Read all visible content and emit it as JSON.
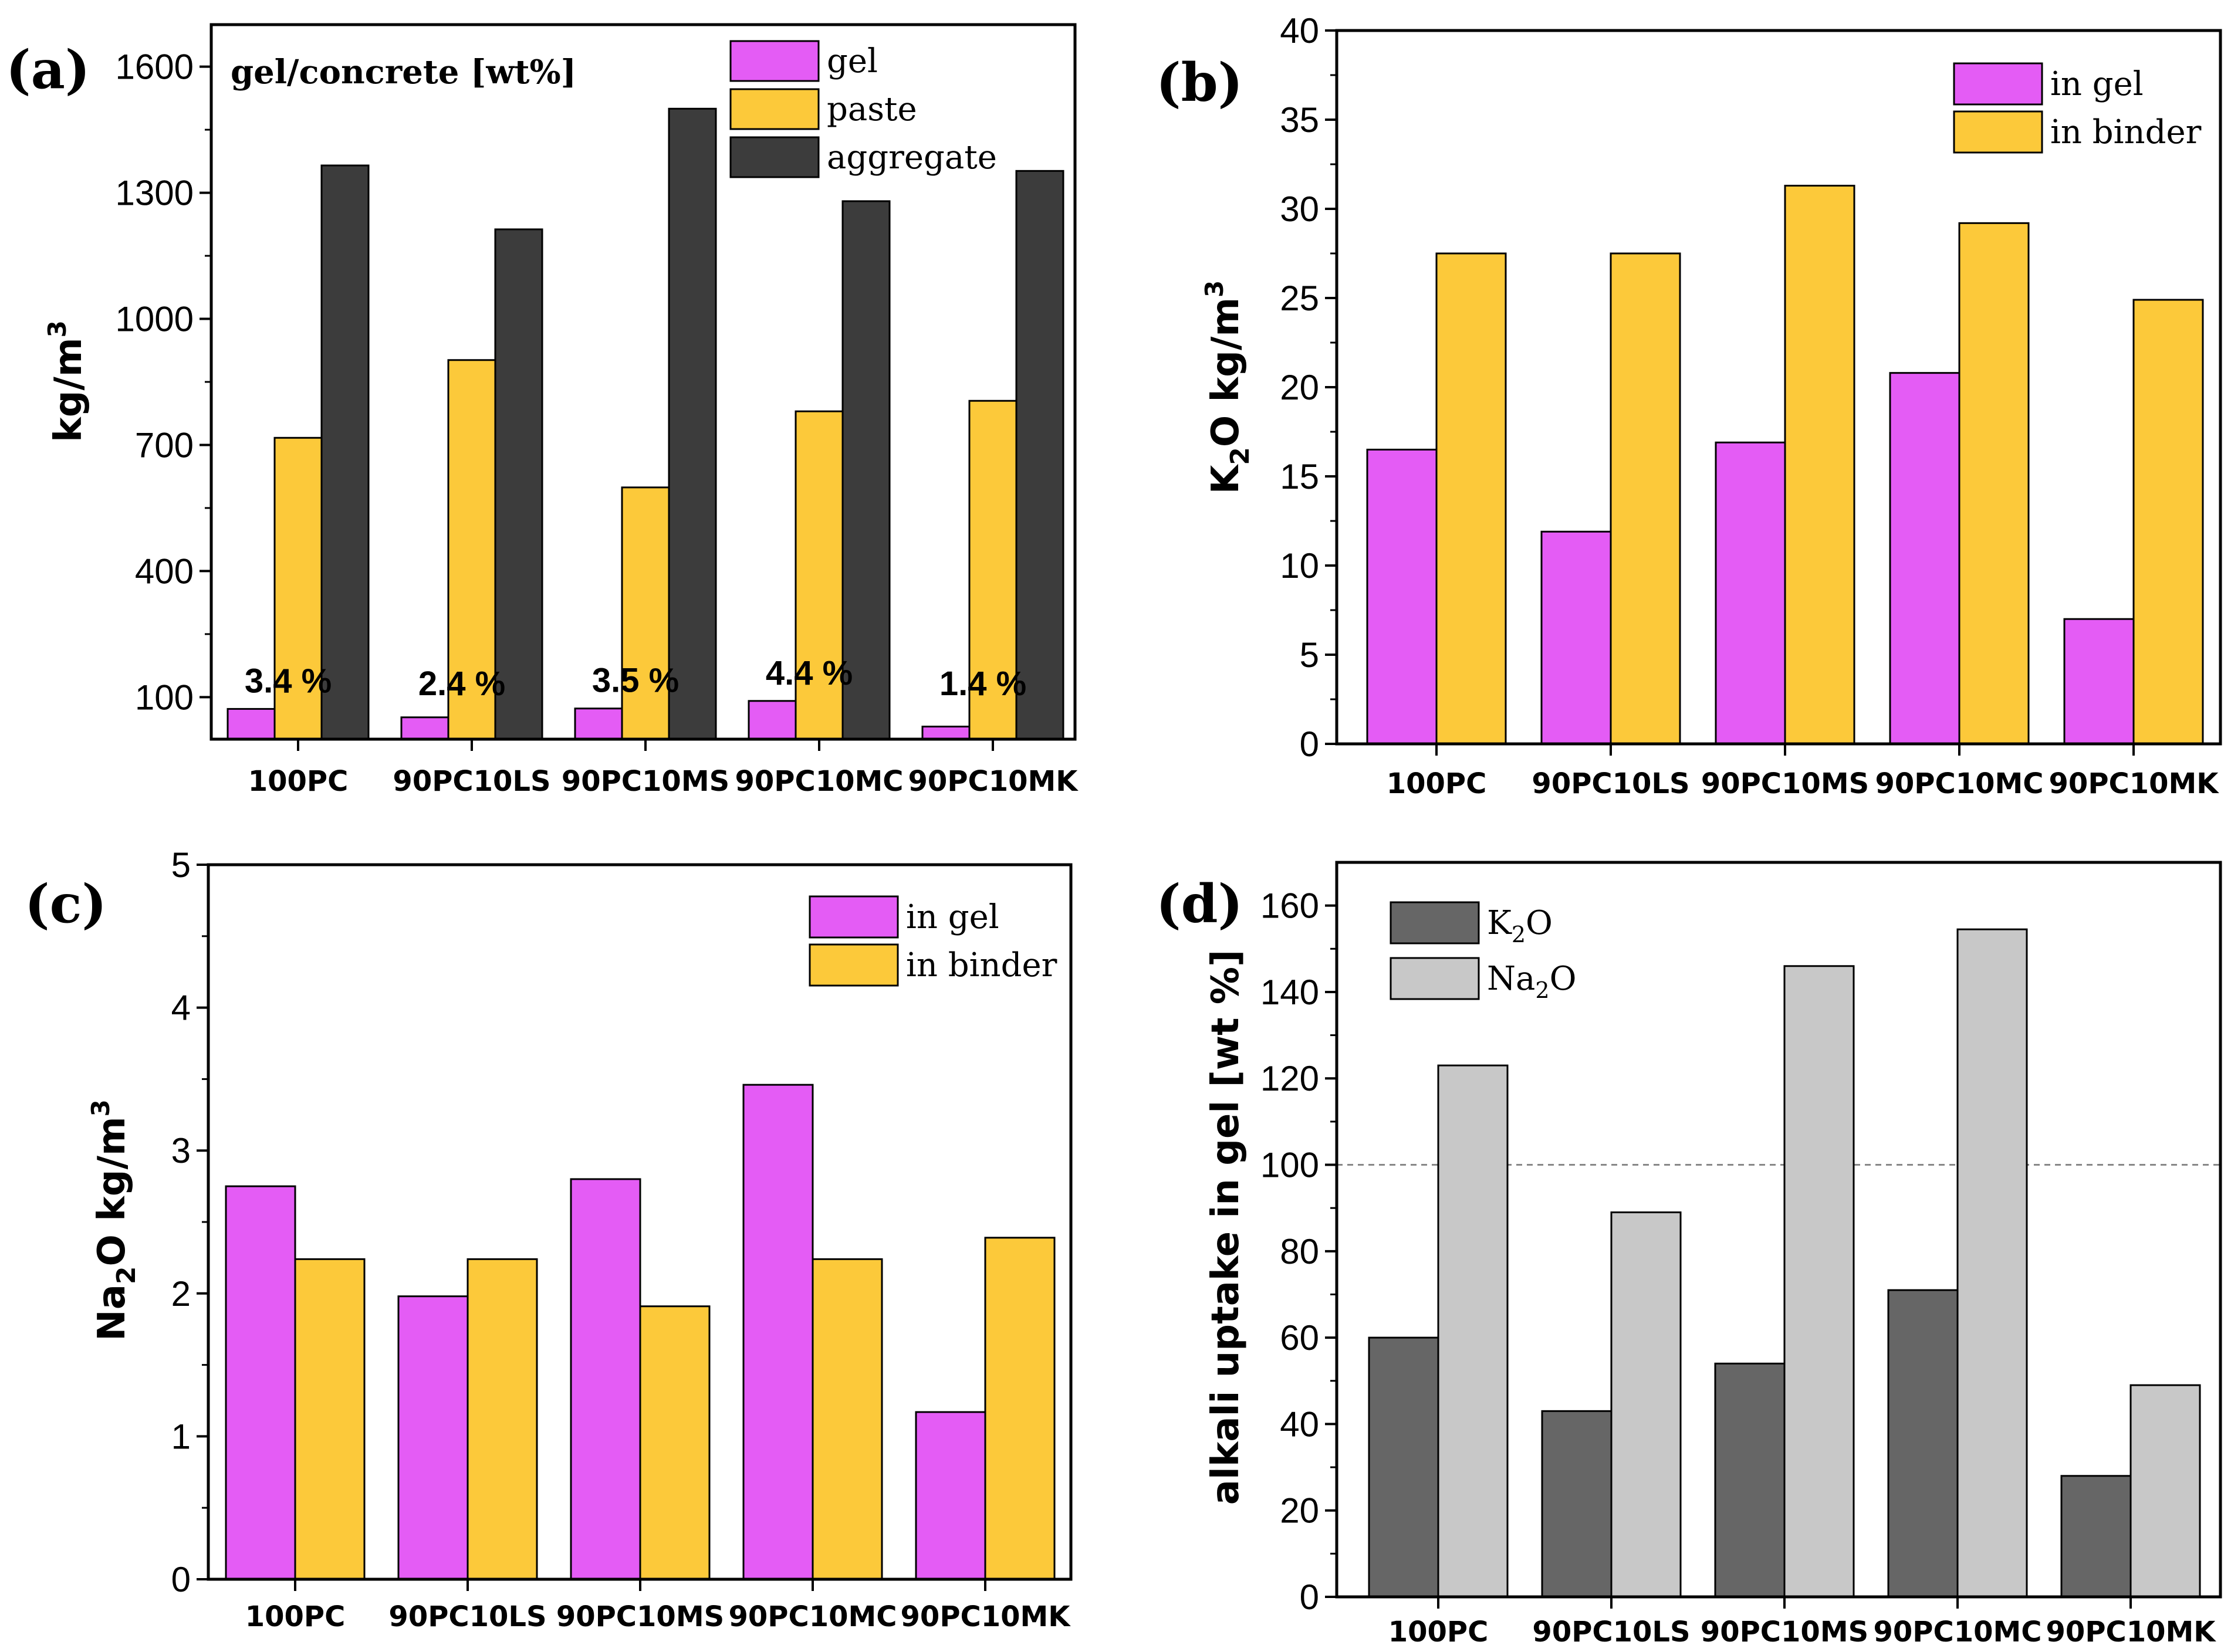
{
  "chart_data": [
    {
      "id": "a",
      "type": "bar",
      "panel_label": "(a)",
      "title": "gel/concrete [wt%]",
      "ylabel": "kg/m",
      "ylabel_sup": "3",
      "ylim": [
        0,
        1700
      ],
      "yticks": [
        100,
        400,
        700,
        1000,
        1300,
        1600
      ],
      "categories": [
        "100PC",
        "90PC10LS",
        "90PC10MS",
        "90PC10MC",
        "90PC10MK"
      ],
      "series": [
        {
          "name": "gel",
          "color": "#e45cf5",
          "values": [
            72,
            52,
            73,
            91,
            30
          ]
        },
        {
          "name": "paste",
          "color": "#fcc93a",
          "values": [
            717,
            902,
            599,
            780,
            805
          ]
        },
        {
          "name": "aggregate",
          "color": "#3c3c3c",
          "values": [
            1365,
            1213,
            1500,
            1280,
            1352
          ]
        }
      ],
      "annotations": [
        "3.4 %",
        "2.4 %",
        "3.5 %",
        "4.4 %",
        "1.4 %"
      ],
      "legend_position": "top-right"
    },
    {
      "id": "b",
      "type": "bar",
      "panel_label": "(b)",
      "ylabel_parts": [
        "K",
        "2",
        "O kg/m",
        "3"
      ],
      "ylim": [
        0,
        40
      ],
      "yticks": [
        0,
        5,
        10,
        15,
        20,
        25,
        30,
        35,
        40
      ],
      "categories": [
        "100PC",
        "90PC10LS",
        "90PC10MS",
        "90PC10MC",
        "90PC10MK"
      ],
      "series": [
        {
          "name": "in gel",
          "color": "#e45cf5",
          "values": [
            16.5,
            11.9,
            16.9,
            20.8,
            7.0
          ]
        },
        {
          "name": "in binder",
          "color": "#fcc93a",
          "values": [
            27.5,
            27.5,
            31.3,
            29.2,
            24.9
          ]
        }
      ],
      "legend_position": "top-right"
    },
    {
      "id": "c",
      "type": "bar",
      "panel_label": "(c)",
      "ylabel_parts": [
        "Na",
        "2",
        "O kg/m",
        "3"
      ],
      "ylim": [
        0,
        5
      ],
      "yticks": [
        0,
        1,
        2,
        3,
        4,
        5
      ],
      "categories": [
        "100PC",
        "90PC10LS",
        "90PC10MS",
        "90PC10MC",
        "90PC10MK"
      ],
      "series": [
        {
          "name": "in gel",
          "color": "#e45cf5",
          "values": [
            2.75,
            1.98,
            2.8,
            3.46,
            1.17
          ]
        },
        {
          "name": "in binder",
          "color": "#fcc93a",
          "values": [
            2.24,
            2.24,
            1.91,
            2.24,
            2.39
          ]
        }
      ],
      "legend_position": "top-right"
    },
    {
      "id": "d",
      "type": "bar",
      "panel_label": "(d)",
      "ylabel": "alkali uptake in gel [wt %]",
      "ylim": [
        0,
        170
      ],
      "yticks": [
        0,
        20,
        40,
        60,
        80,
        100,
        120,
        140,
        160
      ],
      "reference_line": 100,
      "categories": [
        "100PC",
        "90PC10LS",
        "90PC10MS",
        "90PC10MC",
        "90PC10MK"
      ],
      "series": [
        {
          "name_parts": [
            "K",
            "2",
            "O"
          ],
          "color": "#666666",
          "values": [
            60,
            43,
            54,
            71,
            28
          ]
        },
        {
          "name_parts": [
            "Na",
            "2",
            "O"
          ],
          "color": "#c8c8c8",
          "values": [
            123,
            89,
            146,
            154.5,
            49
          ]
        }
      ],
      "legend_position": "top-left"
    }
  ]
}
